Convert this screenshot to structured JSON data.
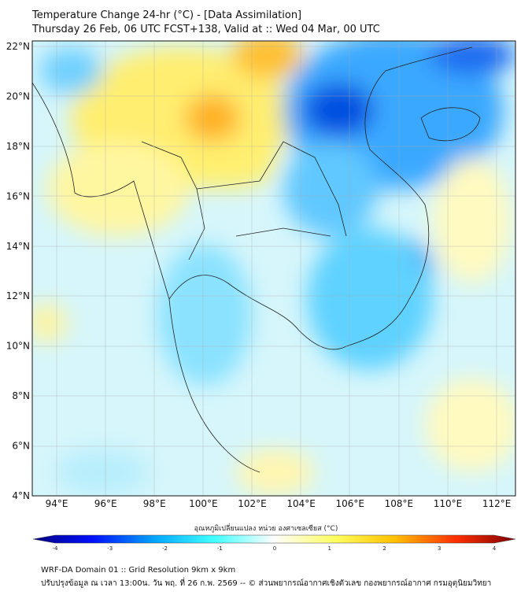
{
  "title": {
    "line1": "Temperature Change 24-hr (°C) - [Data Assimilation]",
    "line2": "Thursday 26 Feb, 06 UTC FCST+138, Valid at :: Wed 04 Mar, 00 UTC"
  },
  "map": {
    "lat_labels": [
      "22°N",
      "20°N",
      "18°N",
      "16°N",
      "14°N",
      "12°N",
      "10°N",
      "8°N",
      "6°N",
      "4°N"
    ],
    "lon_labels": [
      "94°E",
      "96°E",
      "98°E",
      "100°E",
      "102°E",
      "104°E",
      "106°E",
      "108°E",
      "110°E",
      "112°E"
    ],
    "lat_values": [
      22,
      20,
      18,
      16,
      14,
      12,
      10,
      8,
      6,
      4
    ],
    "lon_values": [
      94,
      96,
      98,
      100,
      102,
      104,
      106,
      108,
      110,
      112
    ]
  },
  "colorbar": {
    "title": "อุณหภูมิเปลี่ยนแปลง หน่วย องศาเซลเซียส (°C)",
    "ticks": [
      "-4",
      "-3",
      "-2",
      "-1",
      "0",
      "1",
      "2",
      "3",
      "4"
    ],
    "range": [
      -4,
      4
    ],
    "colors": [
      "#00007f",
      "#0010ff",
      "#00a4ff",
      "#40ffff",
      "#ffffff",
      "#ffff60",
      "#ffc000",
      "#ff3000",
      "#7f0000"
    ]
  },
  "footer": {
    "line1": "WRF-DA Domain 01 :: Grid Resolution 9km x 9km",
    "line2": "ปรับปรุงข้อมูล ณ เวลา 13:00น. วัน พฤ. ที่ 26 ก.พ. 2569 -- © ส่วนพยากรณ์อากาศเชิงตัวเลข กองพยากรณ์อากาศ กรมอุตุนิยมวิทยา"
  }
}
